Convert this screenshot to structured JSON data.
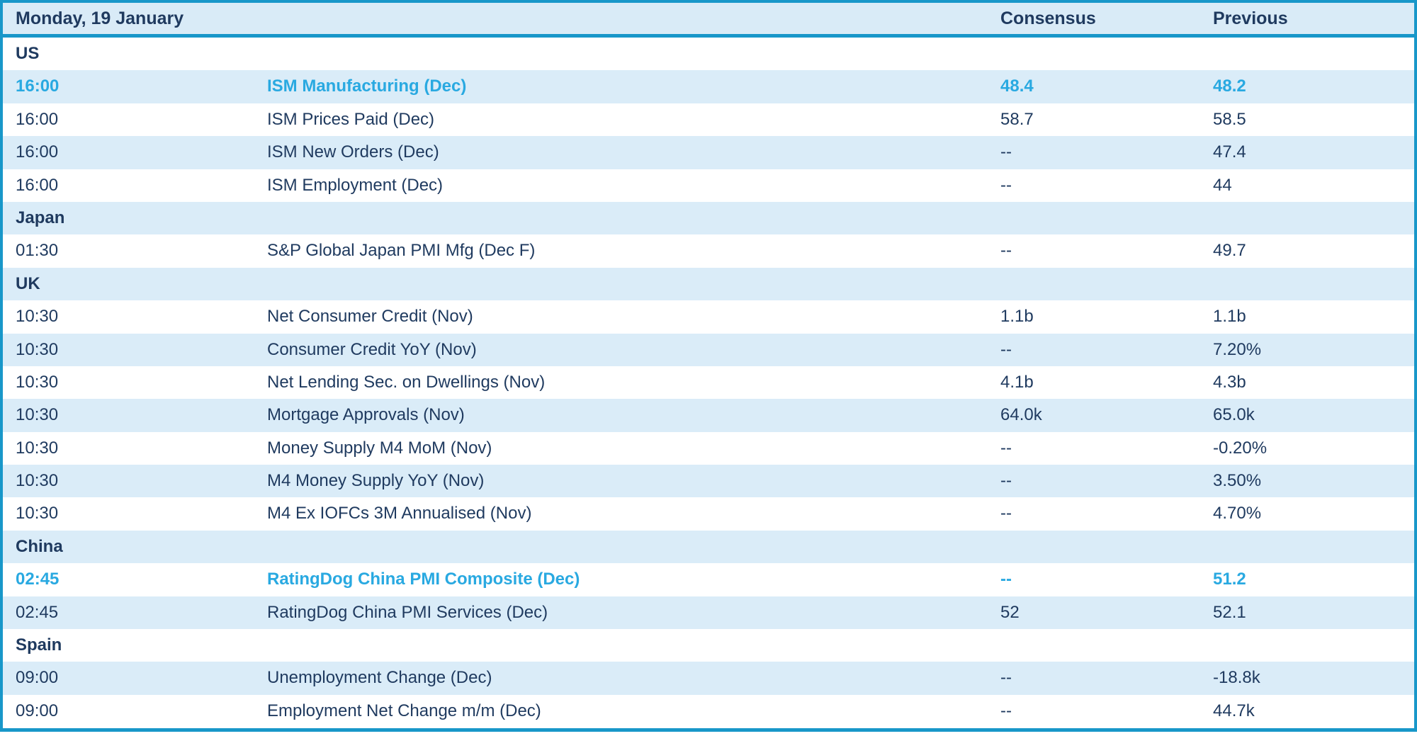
{
  "header": {
    "date": "Monday, 19 January",
    "consensus": "Consensus",
    "previous": "Previous"
  },
  "colors": {
    "border_teal": "#1897c9",
    "row_alt_blue": "#daecf8",
    "text_navy": "#1f3a5f",
    "highlight_cyan": "#29a9e1"
  },
  "rows": [
    {
      "type": "section",
      "label": "US"
    },
    {
      "type": "event",
      "time": "16:00",
      "event": "ISM Manufacturing (Dec)",
      "consensus": "48.4",
      "previous": "48.2",
      "highlight": true
    },
    {
      "type": "event",
      "time": "16:00",
      "event": "ISM Prices Paid (Dec)",
      "consensus": "58.7",
      "previous": "58.5",
      "highlight": false
    },
    {
      "type": "event",
      "time": "16:00",
      "event": "ISM New Orders (Dec)",
      "consensus": "--",
      "previous": "47.4",
      "highlight": false
    },
    {
      "type": "event",
      "time": "16:00",
      "event": "ISM Employment (Dec)",
      "consensus": "--",
      "previous": "44",
      "highlight": false
    },
    {
      "type": "section",
      "label": "Japan"
    },
    {
      "type": "event",
      "time": "01:30",
      "event": "S&P Global Japan PMI Mfg (Dec F)",
      "consensus": "--",
      "previous": "49.7",
      "highlight": false
    },
    {
      "type": "section",
      "label": "UK"
    },
    {
      "type": "event",
      "time": "10:30",
      "event": "Net Consumer Credit (Nov)",
      "consensus": "1.1b",
      "previous": "1.1b",
      "highlight": false
    },
    {
      "type": "event",
      "time": "10:30",
      "event": "Consumer Credit YoY (Nov)",
      "consensus": "--",
      "previous": "7.20%",
      "highlight": false
    },
    {
      "type": "event",
      "time": "10:30",
      "event": "Net Lending Sec. on Dwellings (Nov)",
      "consensus": "4.1b",
      "previous": "4.3b",
      "highlight": false
    },
    {
      "type": "event",
      "time": "10:30",
      "event": "Mortgage Approvals (Nov)",
      "consensus": "64.0k",
      "previous": "65.0k",
      "highlight": false
    },
    {
      "type": "event",
      "time": "10:30",
      "event": "Money Supply M4 MoM (Nov)",
      "consensus": "--",
      "previous": "-0.20%",
      "highlight": false
    },
    {
      "type": "event",
      "time": "10:30",
      "event": "M4 Money Supply YoY (Nov)",
      "consensus": "--",
      "previous": "3.50%",
      "highlight": false
    },
    {
      "type": "event",
      "time": "10:30",
      "event": "M4 Ex IOFCs 3M Annualised (Nov)",
      "consensus": "--",
      "previous": "4.70%",
      "highlight": false
    },
    {
      "type": "section",
      "label": "China"
    },
    {
      "type": "event",
      "time": "02:45",
      "event": "RatingDog China PMI Composite (Dec)",
      "consensus": "--",
      "previous": "51.2",
      "highlight": true
    },
    {
      "type": "event",
      "time": "02:45",
      "event": "RatingDog China PMI Services (Dec)",
      "consensus": "52",
      "previous": "52.1",
      "highlight": false
    },
    {
      "type": "section",
      "label": "Spain"
    },
    {
      "type": "event",
      "time": "09:00",
      "event": "Unemployment Change (Dec)",
      "consensus": "--",
      "previous": "-18.8k",
      "highlight": false
    },
    {
      "type": "event",
      "time": "09:00",
      "event": "Employment Net Change m/m (Dec)",
      "consensus": "--",
      "previous": "44.7k",
      "highlight": false
    }
  ]
}
